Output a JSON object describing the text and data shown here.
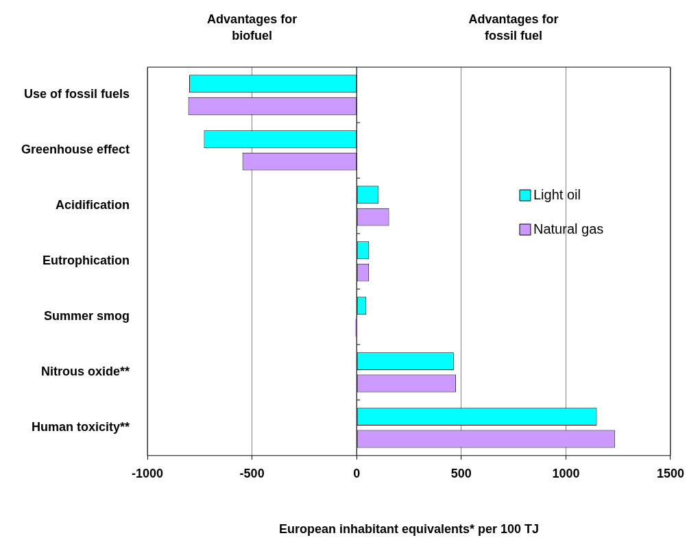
{
  "chart_data": {
    "type": "bar",
    "orientation": "horizontal",
    "categories": [
      "Use of fossil fuels",
      "Greenhouse effect",
      "Acidification",
      "Eutrophication",
      "Summer smog",
      "Nitrous oxide**",
      "Human toxicity**"
    ],
    "series": [
      {
        "name": "Light oil",
        "color": "#00ffff",
        "values": [
          -800,
          -730,
          105,
          59,
          46,
          464,
          1148
        ]
      },
      {
        "name": "Natural gas",
        "color": "#cc99ff",
        "values": [
          -805,
          -546,
          155,
          59,
          -7,
          474,
          1234
        ]
      }
    ],
    "xlim": [
      -1000,
      1500
    ],
    "xticks": [
      -1000,
      -500,
      0,
      500,
      1000,
      1500
    ],
    "xlabel": "European inhabitant equivalents* per 100 TJ",
    "grid": "x",
    "legend": "right",
    "annotations": [
      "Advantages for biofuel",
      "Advantages for fossil fuel"
    ]
  }
}
